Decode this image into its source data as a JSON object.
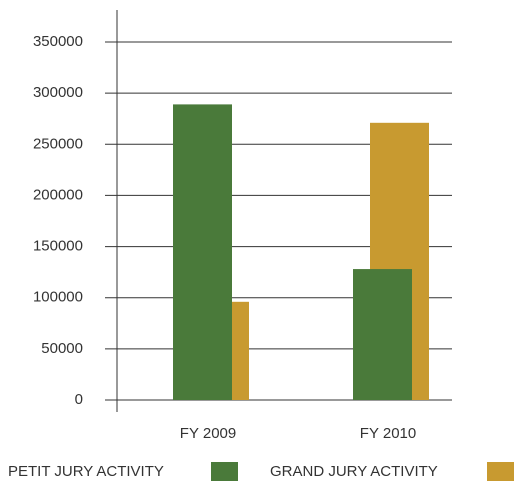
{
  "chart_data": {
    "type": "bar",
    "categories": [
      "FY 2009",
      "FY 2010"
    ],
    "series": [
      {
        "name": "PETIT JURY ACTIVITY",
        "color": "#4a7a3a",
        "values": [
          289000,
          128000
        ]
      },
      {
        "name": "GRAND JURY ACTIVITY",
        "color": "#c89a30",
        "values": [
          96000,
          271000
        ]
      }
    ],
    "ylim": [
      0,
      350000
    ],
    "yticks": [
      0,
      50000,
      100000,
      150000,
      200000,
      250000,
      300000,
      350000
    ],
    "grid": true,
    "legend": "bottom"
  }
}
